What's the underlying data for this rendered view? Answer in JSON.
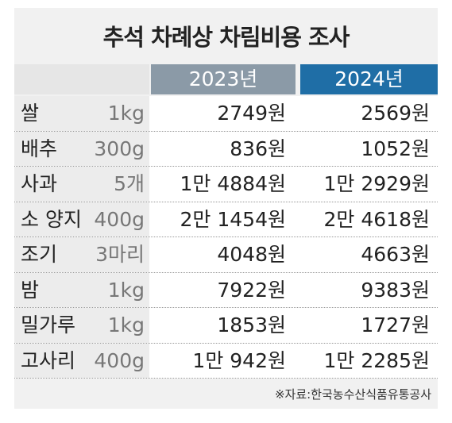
{
  "title": "추석 차례상 차림비용 조사",
  "table": {
    "header": [
      "2023년",
      "2024년"
    ],
    "rows": [
      [
        "쌀",
        "1kg",
        "2749원",
        "2569원"
      ],
      [
        "배추",
        "300g",
        "836원",
        "1052원"
      ],
      [
        "사과",
        "5개",
        "1만 4884원",
        "1만 2929원"
      ],
      [
        "소 양지",
        "400g",
        "2만 1454원",
        "2만 4618원"
      ],
      [
        "조기",
        "3마리",
        "4048원",
        "4663원"
      ],
      [
        "밤",
        "1kg",
        "7922원",
        "9383원"
      ],
      [
        "밀가루",
        "1kg",
        "1853원",
        "1727원"
      ],
      [
        "고사리",
        "400g",
        "1만 942원",
        "1만 2285원"
      ]
    ]
  },
  "source": "※자료:한국농수산식품유통공사"
}
